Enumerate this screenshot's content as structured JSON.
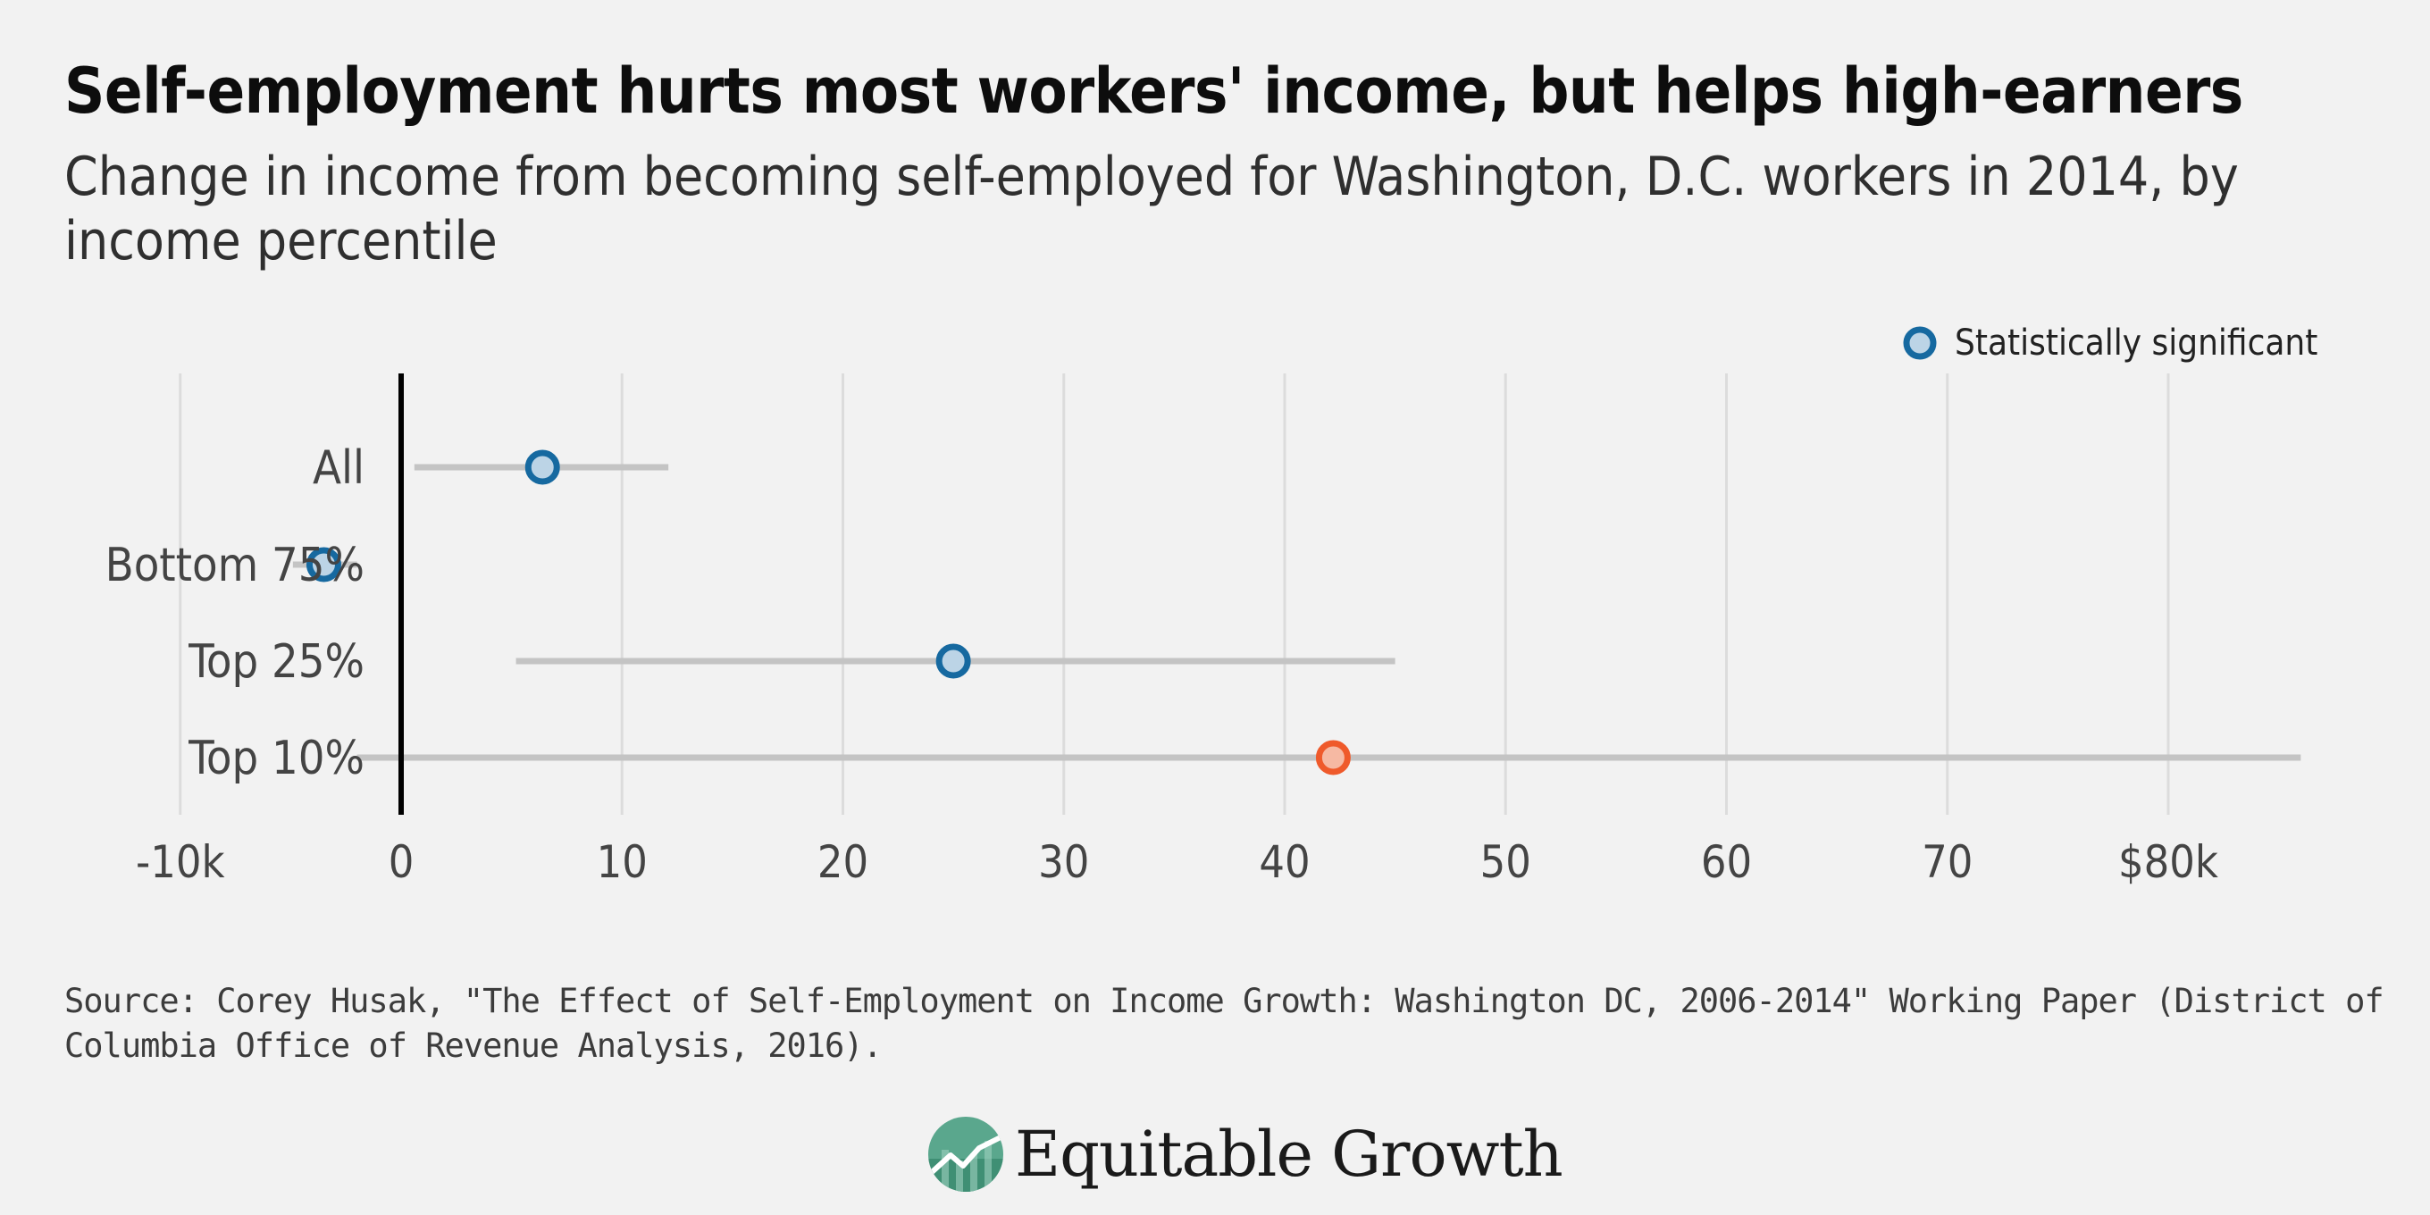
{
  "header": {
    "title": "Self-employment hurts most workers' income, but helps high-earners",
    "subtitle": "Change in income from becoming self-employed for Washington, D.C. workers in 2014, by income percentile"
  },
  "legend": {
    "label": "Statistically significant",
    "position": "top-right"
  },
  "colors": {
    "background": "#f2f2f2",
    "significant_stroke": "#1669a0",
    "significant_fill": "#bcd4e6",
    "not_significant_stroke": "#ef5a2b",
    "not_significant_fill": "#f6b9a3",
    "range_line": "#c4c4c4",
    "grid": "#dcdcdc",
    "zero_line": "#000000"
  },
  "chart_data": {
    "type": "scatter",
    "subtype": "dot-range",
    "title": "Self-employment hurts most workers' income, but helps high-earners",
    "subtitle": "Change in income from becoming self-employed for Washington, D.C. workers in 2014, by income percentile",
    "xlabel": "",
    "ylabel": "",
    "xlim": [
      -10,
      86
    ],
    "x_ticks": [
      -10,
      0,
      10,
      20,
      30,
      40,
      50,
      60,
      70,
      80
    ],
    "x_tick_labels": [
      "-10k",
      "0",
      "10",
      "20",
      "30",
      "40",
      "50",
      "60",
      "70",
      "$80k"
    ],
    "grid": true,
    "categories": [
      "All",
      "Bottom 75%",
      "Top 25%",
      "Top 10%"
    ],
    "points": [
      {
        "category": "All",
        "value": 6.4,
        "low": 0.6,
        "high": 12.1,
        "significant": true
      },
      {
        "category": "Bottom 75%",
        "value": -3.5,
        "low": -4.9,
        "high": -2.0,
        "significant": true
      },
      {
        "category": "Top 25%",
        "value": 25.0,
        "low": 5.2,
        "high": 45.0,
        "significant": true
      },
      {
        "category": "Top 10%",
        "value": 42.2,
        "low": -2.0,
        "high": 86.0,
        "significant": false
      }
    ]
  },
  "footer": {
    "source": "Source: Corey Husak, \"The Effect of Self-Employment on Income Growth: Washington DC, 2006-2014\" Working Paper (District of Columbia Office of Revenue Analysis, 2016).",
    "logo_text": "Equitable Growth"
  }
}
